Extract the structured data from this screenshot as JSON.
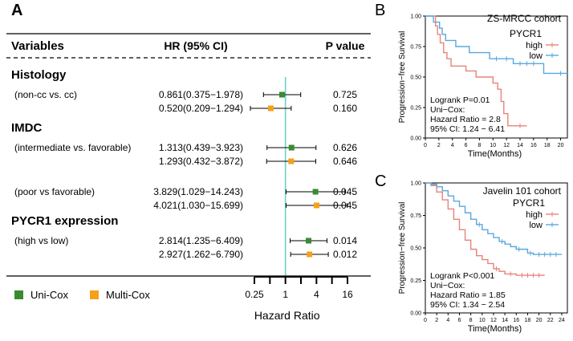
{
  "panel_labels": {
    "a": "A",
    "b": "B",
    "c": "C"
  },
  "chart_data": [
    {
      "type": "forest",
      "header": {
        "variables": "Variables",
        "hr": "HR (95% CI)",
        "p": "P value"
      },
      "groups": [
        {
          "title": "Histology",
          "subgroups": [
            {
              "label": "(non-cc vs. cc)",
              "rows": [
                {
                  "model": "Uni-Cox",
                  "hr": 0.861,
                  "lo": 0.375,
                  "hi": 1.978,
                  "text": "0.861(0.375−1.978)",
                  "p": "0.725"
                },
                {
                  "model": "Multi-Cox",
                  "hr": 0.52,
                  "lo": 0.209,
                  "hi": 1.294,
                  "text": "0.520(0.209−1.294)",
                  "p": "0.160"
                }
              ]
            }
          ]
        },
        {
          "title": "IMDC",
          "subgroups": [
            {
              "label": "(intermediate vs. favorable)",
              "rows": [
                {
                  "model": "Uni-Cox",
                  "hr": 1.313,
                  "lo": 0.439,
                  "hi": 3.923,
                  "text": "1.313(0.439−3.923)",
                  "p": "0.626"
                },
                {
                  "model": "Multi-Cox",
                  "hr": 1.293,
                  "lo": 0.432,
                  "hi": 3.872,
                  "text": "1.293(0.432−3.872)",
                  "p": "0.646"
                }
              ]
            },
            {
              "label": "(poor vs favorable)",
              "rows": [
                {
                  "model": "Uni-Cox",
                  "hr": 3.829,
                  "lo": 1.029,
                  "hi": 14.243,
                  "text": "3.829(1.029−14.243)",
                  "p": "0.045"
                },
                {
                  "model": "Multi-Cox",
                  "hr": 4.021,
                  "lo": 1.03,
                  "hi": 15.699,
                  "text": "4.021(1.030−15.699)",
                  "p": "0.045"
                }
              ]
            }
          ]
        },
        {
          "title": "PYCR1 expression",
          "subgroups": [
            {
              "label": "(high vs low)",
              "rows": [
                {
                  "model": "Uni-Cox",
                  "hr": 2.814,
                  "lo": 1.235,
                  "hi": 6.409,
                  "text": "2.814(1.235−6.409)",
                  "p": "0.014"
                },
                {
                  "model": "Multi-Cox",
                  "hr": 2.927,
                  "lo": 1.262,
                  "hi": 6.79,
                  "text": "2.927(1.262−6.790)",
                  "p": "0.012"
                }
              ]
            }
          ]
        }
      ],
      "legend": [
        {
          "name": "Uni-Cox",
          "color": "#3a8a2f"
        },
        {
          "name": "Multi-Cox",
          "color": "#f5a11b"
        }
      ],
      "xaxis": {
        "scale": "log2",
        "ticks": [
          0.25,
          0.5,
          1,
          2,
          4,
          8,
          16
        ],
        "tick_labels": [
          "0.25",
          "1",
          "4",
          "16"
        ],
        "label": "Hazard Ratio",
        "reference": 1
      },
      "reference_color": "#6fd0c8"
    },
    {
      "type": "kaplan-meier",
      "title": "ZS-MRCC cohort",
      "legend_title": "PYCR1",
      "xlabel": "Time(Months)",
      "ylabel": "Progression−free Survival",
      "xlim": [
        0,
        21
      ],
      "xticks": [
        "0",
        "2",
        "4",
        "6",
        "8",
        "10",
        "12",
        "14",
        "16",
        "18",
        "20"
      ],
      "ylim": [
        0,
        1
      ],
      "yticks": [
        "0.00",
        "0.25",
        "0.50",
        "0.75",
        "1.00"
      ],
      "annotations": [
        "Logrank P=0.01",
        "Uni−Cox:",
        "Hazard Ratio = 2.8",
        "95% CI: 1.24 − 6.41"
      ],
      "series": [
        {
          "name": "high",
          "color": "#e8837a",
          "steps": [
            [
              0,
              1
            ],
            [
              1.5,
              0.92
            ],
            [
              1.8,
              0.85
            ],
            [
              2.2,
              0.78
            ],
            [
              2.7,
              0.7
            ],
            [
              3.2,
              0.65
            ],
            [
              3.8,
              0.59
            ],
            [
              6,
              0.55
            ],
            [
              7.5,
              0.5
            ],
            [
              10,
              0.45
            ],
            [
              10.7,
              0.4
            ],
            [
              11.2,
              0.3
            ],
            [
              11.6,
              0.2
            ],
            [
              12.2,
              0.1
            ],
            [
              15,
              0.1
            ]
          ],
          "censors": [
            [
              14,
              0.1
            ]
          ]
        },
        {
          "name": "low",
          "color": "#5ba7dd",
          "steps": [
            [
              0,
              1
            ],
            [
              1.2,
              0.95
            ],
            [
              2.1,
              0.9
            ],
            [
              2.5,
              0.85
            ],
            [
              3,
              0.8
            ],
            [
              4.5,
              0.75
            ],
            [
              6.5,
              0.7
            ],
            [
              9.5,
              0.65
            ],
            [
              13,
              0.61
            ],
            [
              17.5,
              0.53
            ],
            [
              21,
              0.53
            ]
          ],
          "censors": [
            [
              10.5,
              0.65
            ],
            [
              12,
              0.65
            ],
            [
              14,
              0.61
            ],
            [
              15,
              0.61
            ],
            [
              16,
              0.61
            ],
            [
              20,
              0.53
            ]
          ]
        }
      ]
    },
    {
      "type": "kaplan-meier",
      "title": "Javelin 101 cohort",
      "legend_title": "PYCR1",
      "xlabel": "Time(Months)",
      "ylabel": "Progression−free Survival",
      "xlim": [
        0,
        25
      ],
      "xticks": [
        "0",
        "2",
        "4",
        "6",
        "8",
        "10",
        "12",
        "14",
        "16",
        "18",
        "20",
        "22",
        "24"
      ],
      "ylim": [
        0,
        1
      ],
      "yticks": [
        "0.00",
        "0.25",
        "0.50",
        "0.75",
        "1.00"
      ],
      "annotations": [
        "Logrank P<0.001",
        "Uni−Cox:",
        "Hazard Ratio = 1.85",
        "95% CI: 1.34 − 2.54"
      ],
      "series": [
        {
          "name": "high",
          "color": "#e8837a",
          "steps": [
            [
              0,
              1
            ],
            [
              1,
              0.98
            ],
            [
              2,
              0.93
            ],
            [
              3,
              0.87
            ],
            [
              4,
              0.8
            ],
            [
              5,
              0.72
            ],
            [
              6,
              0.64
            ],
            [
              7,
              0.56
            ],
            [
              8,
              0.49
            ],
            [
              9,
              0.44
            ],
            [
              10,
              0.41
            ],
            [
              11,
              0.38
            ],
            [
              12,
              0.34
            ],
            [
              13,
              0.32
            ],
            [
              14,
              0.3
            ],
            [
              16,
              0.29
            ],
            [
              21,
              0.29
            ]
          ],
          "censors": [
            [
              12.5,
              0.34
            ],
            [
              15,
              0.3
            ],
            [
              17,
              0.29
            ],
            [
              18,
              0.29
            ],
            [
              19,
              0.29
            ],
            [
              20,
              0.29
            ]
          ]
        },
        {
          "name": "low",
          "color": "#5ba7dd",
          "steps": [
            [
              0,
              1
            ],
            [
              1,
              0.99
            ],
            [
              2,
              0.97
            ],
            [
              3,
              0.94
            ],
            [
              4,
              0.9
            ],
            [
              5,
              0.86
            ],
            [
              6,
              0.82
            ],
            [
              7,
              0.77
            ],
            [
              8,
              0.72
            ],
            [
              9,
              0.68
            ],
            [
              10,
              0.64
            ],
            [
              11,
              0.61
            ],
            [
              12,
              0.58
            ],
            [
              13,
              0.55
            ],
            [
              14,
              0.53
            ],
            [
              15,
              0.51
            ],
            [
              16,
              0.49
            ],
            [
              18,
              0.46
            ],
            [
              19,
              0.45
            ],
            [
              24,
              0.45
            ]
          ],
          "censors": [
            [
              9.5,
              0.68
            ],
            [
              13.5,
              0.55
            ],
            [
              16.5,
              0.49
            ],
            [
              18.5,
              0.46
            ],
            [
              20,
              0.45
            ],
            [
              21,
              0.45
            ],
            [
              22,
              0.45
            ],
            [
              23,
              0.45
            ]
          ]
        }
      ]
    }
  ]
}
